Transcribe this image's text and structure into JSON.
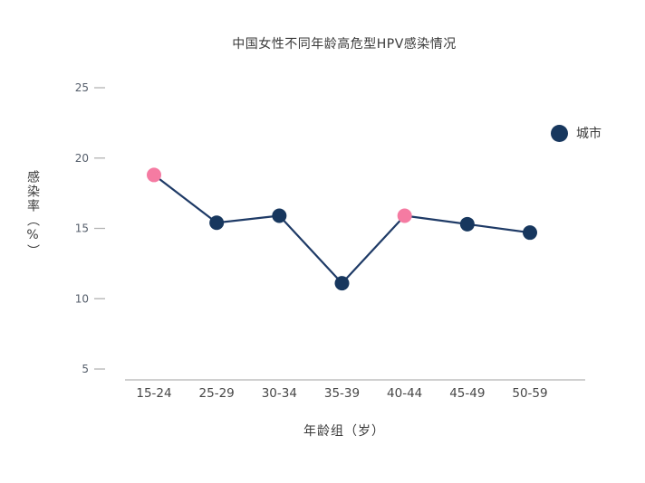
{
  "title": "中国女性不同年龄高危型HPV感染情况",
  "chart_data": {
    "type": "line",
    "title": "中国女性不同年龄高危型HPV感染情况",
    "xlabel": "年龄组（岁）",
    "ylabel": "感染率（%）",
    "categories": [
      "15-24",
      "25-29",
      "30-34",
      "35-39",
      "40-44",
      "45-49",
      "50-59"
    ],
    "series": [
      {
        "name": "城市",
        "values": [
          18.8,
          15.4,
          15.9,
          11.1,
          15.9,
          15.3,
          14.7
        ]
      }
    ],
    "highlight_indices": [
      0,
      4
    ],
    "ylim": [
      5,
      25
    ],
    "yticks": [
      5,
      10,
      15,
      20,
      25
    ],
    "grid": false,
    "legend_position": "right",
    "colors": {
      "line": "#1e3a66",
      "point": "#17375e",
      "highlight_point": "#f57ba2",
      "axis": "#b3b3b3",
      "tick_text": "#555e6b"
    }
  }
}
